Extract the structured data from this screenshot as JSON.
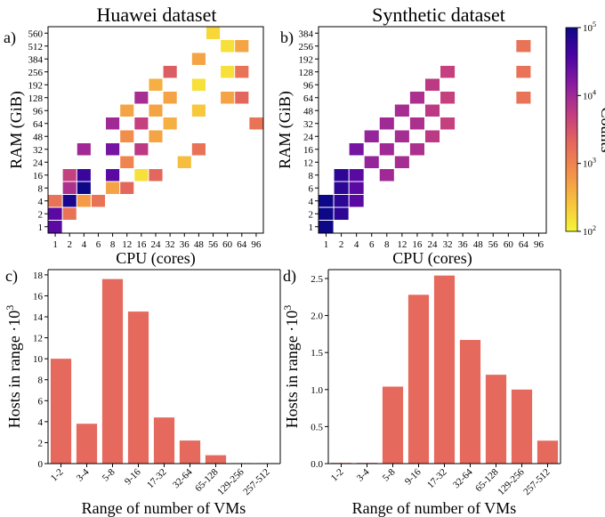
{
  "colors": {
    "bar": "#e5695c",
    "colormap": [
      "#f6f536",
      "#f7c33d",
      "#f4924a",
      "#e5695c",
      "#c43e7f",
      "#8e1fa0",
      "#4b04a3",
      "#0d0887"
    ]
  },
  "colorbar": {
    "label": "Counts",
    "ticks": [
      {
        "base": "10",
        "exp": "5",
        "value": 100000
      },
      {
        "base": "10",
        "exp": "4",
        "value": 10000
      },
      {
        "base": "10",
        "exp": "3",
        "value": 1000
      },
      {
        "base": "10",
        "exp": "2",
        "value": 100
      }
    ],
    "scale": "log",
    "range": [
      100,
      100000
    ]
  },
  "chart_data": [
    {
      "type": "heatmap",
      "panel_label": "a)",
      "title": "Huawei dataset",
      "xlabel": "CPU (cores)",
      "ylabel": "RAM (GiB)",
      "x_categories": [
        "1",
        "2",
        "4",
        "6",
        "8",
        "12",
        "16",
        "24",
        "32",
        "36",
        "48",
        "56",
        "60",
        "64",
        "96"
      ],
      "y_categories": [
        "1",
        "2",
        "4",
        "8",
        "16",
        "24",
        "32",
        "48",
        "64",
        "96",
        "128",
        "192",
        "256",
        "384",
        "512",
        "560"
      ],
      "scale": "log",
      "cells": [
        {
          "x": "1",
          "y": "1",
          "count": 30000
        },
        {
          "x": "1",
          "y": "2",
          "count": 30000
        },
        {
          "x": "1",
          "y": "4",
          "count": 1500
        },
        {
          "x": "2",
          "y": "2",
          "count": 1500
        },
        {
          "x": "2",
          "y": "4",
          "count": 80000
        },
        {
          "x": "2",
          "y": "8",
          "count": 8000
        },
        {
          "x": "2",
          "y": "16",
          "count": 5000
        },
        {
          "x": "4",
          "y": "4",
          "count": 600
        },
        {
          "x": "4",
          "y": "8",
          "count": 100000
        },
        {
          "x": "4",
          "y": "16",
          "count": 50000
        },
        {
          "x": "4",
          "y": "32",
          "count": 10000
        },
        {
          "x": "6",
          "y": "4",
          "count": 1500
        },
        {
          "x": "8",
          "y": "8",
          "count": 500
        },
        {
          "x": "8",
          "y": "16",
          "count": 30000
        },
        {
          "x": "8",
          "y": "32",
          "count": 20000
        },
        {
          "x": "8",
          "y": "64",
          "count": 10000
        },
        {
          "x": "12",
          "y": "8",
          "count": 2000
        },
        {
          "x": "12",
          "y": "24",
          "count": 1000
        },
        {
          "x": "12",
          "y": "48",
          "count": 800
        },
        {
          "x": "12",
          "y": "96",
          "count": 500
        },
        {
          "x": "16",
          "y": "16",
          "count": 150
        },
        {
          "x": "16",
          "y": "32",
          "count": 6000
        },
        {
          "x": "16",
          "y": "64",
          "count": 5000
        },
        {
          "x": "16",
          "y": "128",
          "count": 9000
        },
        {
          "x": "24",
          "y": "16",
          "count": 2000
        },
        {
          "x": "24",
          "y": "48",
          "count": 500
        },
        {
          "x": "24",
          "y": "96",
          "count": 500
        },
        {
          "x": "24",
          "y": "192",
          "count": 400
        },
        {
          "x": "32",
          "y": "64",
          "count": 400
        },
        {
          "x": "32",
          "y": "128",
          "count": 500
        },
        {
          "x": "32",
          "y": "256",
          "count": 2500
        },
        {
          "x": "36",
          "y": "24",
          "count": 300
        },
        {
          "x": "48",
          "y": "32",
          "count": 1500
        },
        {
          "x": "48",
          "y": "96",
          "count": 250
        },
        {
          "x": "48",
          "y": "192",
          "count": 150
        },
        {
          "x": "48",
          "y": "384",
          "count": 500
        },
        {
          "x": "56",
          "y": "560",
          "count": 180
        },
        {
          "x": "60",
          "y": "128",
          "count": 500
        },
        {
          "x": "60",
          "y": "256",
          "count": 150
        },
        {
          "x": "60",
          "y": "512",
          "count": 150
        },
        {
          "x": "64",
          "y": "128",
          "count": 2000
        },
        {
          "x": "64",
          "y": "256",
          "count": 1500
        },
        {
          "x": "64",
          "y": "512",
          "count": 500
        },
        {
          "x": "96",
          "y": "64",
          "count": 1500
        }
      ]
    },
    {
      "type": "heatmap",
      "panel_label": "b)",
      "title": "Synthetic dataset",
      "xlabel": "CPU (cores)",
      "ylabel": "RAM (GiB)",
      "x_categories": [
        "1",
        "2",
        "4",
        "6",
        "8",
        "12",
        "16",
        "24",
        "32",
        "36",
        "48",
        "56",
        "60",
        "64",
        "96"
      ],
      "y_categories": [
        "1",
        "2",
        "4",
        "6",
        "8",
        "12",
        "16",
        "24",
        "32",
        "48",
        "64",
        "96",
        "128",
        "192",
        "256",
        "384"
      ],
      "scale": "log",
      "cells": [
        {
          "x": "1",
          "y": "1",
          "count": 100000
        },
        {
          "x": "1",
          "y": "2",
          "count": 100000
        },
        {
          "x": "1",
          "y": "4",
          "count": 100000
        },
        {
          "x": "2",
          "y": "2",
          "count": 60000
        },
        {
          "x": "2",
          "y": "4",
          "count": 60000
        },
        {
          "x": "2",
          "y": "6",
          "count": 60000
        },
        {
          "x": "2",
          "y": "8",
          "count": 60000
        },
        {
          "x": "4",
          "y": "4",
          "count": 30000
        },
        {
          "x": "4",
          "y": "6",
          "count": 30000
        },
        {
          "x": "4",
          "y": "8",
          "count": 30000
        },
        {
          "x": "4",
          "y": "16",
          "count": 20000
        },
        {
          "x": "6",
          "y": "12",
          "count": 12000
        },
        {
          "x": "6",
          "y": "24",
          "count": 12000
        },
        {
          "x": "8",
          "y": "8",
          "count": 10000
        },
        {
          "x": "8",
          "y": "16",
          "count": 10000
        },
        {
          "x": "8",
          "y": "32",
          "count": 10000
        },
        {
          "x": "12",
          "y": "12",
          "count": 9000
        },
        {
          "x": "12",
          "y": "24",
          "count": 9000
        },
        {
          "x": "12",
          "y": "48",
          "count": 9000
        },
        {
          "x": "16",
          "y": "16",
          "count": 8000
        },
        {
          "x": "16",
          "y": "32",
          "count": 8000
        },
        {
          "x": "16",
          "y": "64",
          "count": 8000
        },
        {
          "x": "24",
          "y": "24",
          "count": 6000
        },
        {
          "x": "24",
          "y": "48",
          "count": 6000
        },
        {
          "x": "24",
          "y": "96",
          "count": 6000
        },
        {
          "x": "32",
          "y": "32",
          "count": 5000
        },
        {
          "x": "32",
          "y": "64",
          "count": 5000
        },
        {
          "x": "32",
          "y": "128",
          "count": 5000
        },
        {
          "x": "64",
          "y": "64",
          "count": 1500
        },
        {
          "x": "64",
          "y": "128",
          "count": 1500
        },
        {
          "x": "64",
          "y": "256",
          "count": 1500
        }
      ]
    },
    {
      "type": "bar",
      "panel_label": "c)",
      "xlabel": "Range of number of VMs",
      "ylabel": "Hosts in range ·10",
      "ylabel_exp": "3",
      "categories": [
        "1-2",
        "3-4",
        "5-8",
        "9-16",
        "17-32",
        "32-64",
        "65-128",
        "129-256",
        "257-512"
      ],
      "values": [
        10.0,
        3.8,
        17.6,
        14.5,
        4.4,
        2.2,
        0.8,
        0.05,
        0.05
      ],
      "ylim": [
        0,
        18.5
      ],
      "yticks": [
        "0",
        "2",
        "4",
        "6",
        "8",
        "10",
        "12",
        "14",
        "16",
        "18"
      ],
      "ytick_values": [
        0,
        2,
        4,
        6,
        8,
        10,
        12,
        14,
        16,
        18
      ]
    },
    {
      "type": "bar",
      "panel_label": "d)",
      "xlabel": "Range of number of VMs",
      "ylabel": "Hosts in range ·10",
      "ylabel_exp": "3",
      "categories": [
        "1-2",
        "3-4",
        "5-8",
        "9-16",
        "17-32",
        "32-64",
        "65-128",
        "129-256",
        "257-512"
      ],
      "values": [
        0.01,
        0.01,
        1.04,
        2.28,
        2.54,
        1.67,
        1.2,
        1.0,
        0.31
      ],
      "ylim": [
        0,
        2.62
      ],
      "yticks": [
        "0.0",
        "0.5",
        "1.0",
        "1.5",
        "2.0",
        "2.5"
      ],
      "ytick_values": [
        0,
        0.5,
        1.0,
        1.5,
        2.0,
        2.5
      ]
    }
  ]
}
